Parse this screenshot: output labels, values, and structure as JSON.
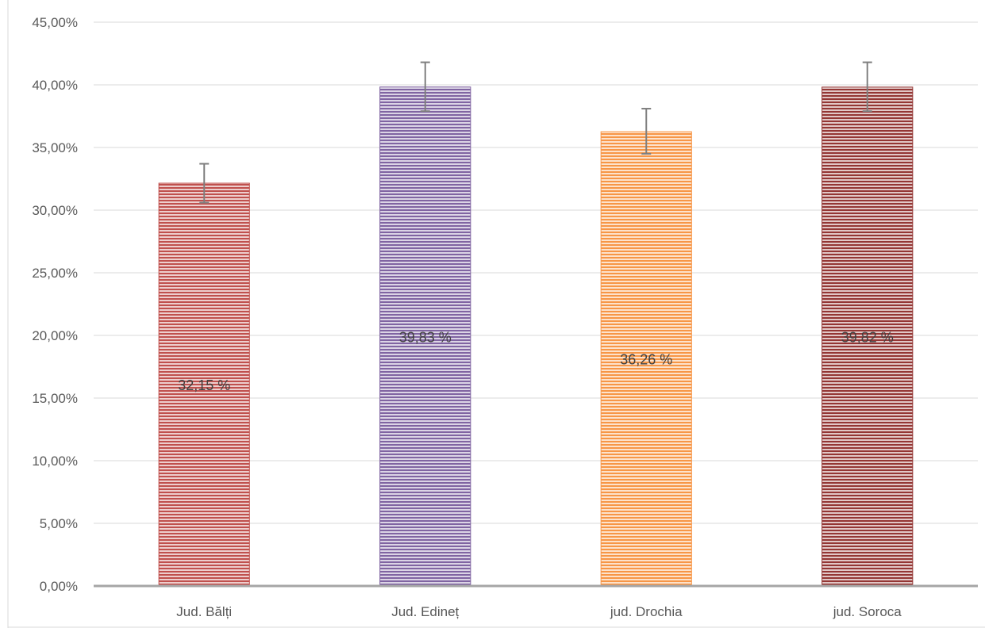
{
  "chart_data": {
    "type": "bar",
    "categories": [
      "Jud. Bălți",
      "Jud. Edineț",
      "jud. Drochia",
      "jud. Soroca"
    ],
    "values": [
      32.15,
      39.83,
      36.26,
      39.82
    ],
    "error_bars": [
      {
        "low": 30.6,
        "high": 33.7
      },
      {
        "low": 37.9,
        "high": 41.8
      },
      {
        "low": 34.5,
        "high": 38.1
      },
      {
        "low": 37.9,
        "high": 41.8
      }
    ],
    "data_labels": [
      "32,15 %",
      "39,83 %",
      "36,26 %",
      "39,82 %"
    ],
    "ylim": [
      0,
      45
    ],
    "yticks": [
      0,
      5,
      10,
      15,
      20,
      25,
      30,
      35,
      40,
      45
    ],
    "ytick_labels": [
      "0,00%",
      "5,00%",
      "10,00%",
      "15,00%",
      "20,00%",
      "25,00%",
      "30,00%",
      "35,00%",
      "40,00%",
      "45,00%"
    ],
    "grid": true,
    "legend": "none",
    "bar_pattern": "horizontal-stripes",
    "colors": [
      "#c0504d",
      "#8064a2",
      "#f79646",
      "#943634"
    ]
  }
}
